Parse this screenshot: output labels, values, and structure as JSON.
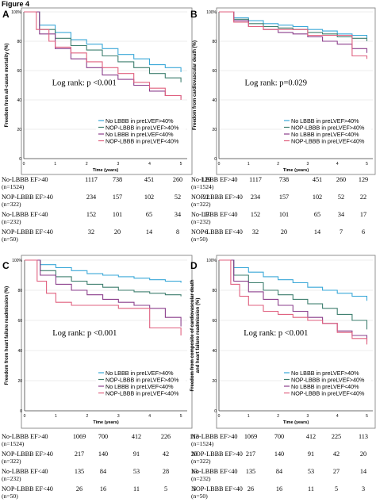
{
  "figure_title": "Figure 4",
  "colors": {
    "s1": "#3aa8d8",
    "s2": "#3f7f6f",
    "s3": "#8b3f8c",
    "s4": "#e0607f"
  },
  "chart_data": [
    {
      "type": "line",
      "panel_label": "A",
      "xlabel": "Time (years)",
      "ylabel": "Freedom from all-cause mortality (%)",
      "annotation": "Log rank:  p <0.001",
      "xlim": [
        0,
        5.2
      ],
      "ylim": [
        0,
        100
      ],
      "x_ticks": [
        "0",
        "1",
        "2",
        "3",
        "4",
        "5"
      ],
      "y_ticks": [
        "0",
        "20",
        "40",
        "60",
        "80",
        "100%"
      ],
      "legend_position": "lower-right",
      "series": [
        {
          "name": "No LBBB in preLVEF>40%",
          "x": [
            0,
            0.5,
            1,
            1.5,
            2,
            2.5,
            3,
            3.5,
            4,
            4.5,
            5
          ],
          "y": [
            100,
            91,
            86,
            81,
            78,
            75,
            71,
            68,
            64,
            62,
            59
          ]
        },
        {
          "name": "NOP-LBBB in preLVEF>40%",
          "x": [
            0,
            0.5,
            1,
            1.5,
            2,
            2.5,
            3,
            3.5,
            4,
            4.5,
            5
          ],
          "y": [
            100,
            88,
            82,
            77,
            74,
            70,
            66,
            62,
            58,
            55,
            52
          ]
        },
        {
          "name": "No LBBB in preLVEF<40%",
          "x": [
            0,
            0.5,
            1,
            1.5,
            2,
            2.5,
            3,
            3.5,
            4,
            4.5,
            5
          ],
          "y": [
            100,
            85,
            75,
            68,
            62,
            57,
            54,
            50,
            46,
            43,
            41
          ]
        },
        {
          "name": "NOP-LBBB in preLVEF<40%",
          "x": [
            0,
            0.4,
            0.8,
            1,
            1.5,
            2,
            2.5,
            3,
            3.5,
            4,
            4.5,
            5
          ],
          "y": [
            100,
            88,
            80,
            76,
            72,
            66,
            62,
            58,
            52,
            48,
            43,
            40
          ]
        }
      ],
      "risk_table": [
        {
          "label": "No-LBBB EF>40",
          "n": "(n=1524)",
          "values": [
            "1117",
            "738",
            "451",
            "260",
            "129"
          ]
        },
        {
          "label": "NOP-LBBB EF>40",
          "n": "(n=322)",
          "values": [
            "234",
            "157",
            "102",
            "52",
            "22"
          ]
        },
        {
          "label": "No-LBBB EF<40",
          "n": "(n=232)",
          "values": [
            "152",
            "101",
            "65",
            "34",
            "17"
          ]
        },
        {
          "label": "NOP-LBBB EF<40",
          "n": "(n=50)",
          "values": [
            "32",
            "20",
            "14",
            "8",
            "6"
          ]
        }
      ]
    },
    {
      "type": "line",
      "panel_label": "B",
      "xlabel": "Time (years)",
      "ylabel": "Freedom from cardiovascular death (%)",
      "annotation": "Log rank:  p=0.029",
      "xlim": [
        0,
        5.2
      ],
      "ylim": [
        0,
        100
      ],
      "x_ticks": [
        "0",
        "1",
        "2",
        "3",
        "4",
        "5"
      ],
      "y_ticks": [
        "0",
        "20",
        "40",
        "60",
        "80",
        "100%"
      ],
      "legend_position": "lower-right",
      "series": [
        {
          "name": "No LBBB in preLVEF>40%",
          "x": [
            0,
            0.5,
            1,
            1.5,
            2,
            2.5,
            3,
            3.5,
            4,
            4.5,
            5
          ],
          "y": [
            100,
            96,
            94,
            92,
            91,
            90,
            88,
            87,
            85,
            84,
            82
          ]
        },
        {
          "name": "NOP-LBBB in preLVEF>40%",
          "x": [
            0,
            0.5,
            1,
            1.5,
            2,
            2.5,
            3,
            3.5,
            4,
            4.5,
            5
          ],
          "y": [
            100,
            95,
            92,
            90,
            89,
            88,
            86,
            85,
            83,
            82,
            80
          ]
        },
        {
          "name": "No LBBB in preLVEF<40%",
          "x": [
            0,
            0.5,
            1,
            1.5,
            2,
            2.5,
            3,
            3.5,
            4,
            4.5,
            5
          ],
          "y": [
            100,
            94,
            90,
            88,
            86,
            85,
            83,
            80,
            78,
            75,
            72
          ]
        },
        {
          "name": "NOP-LBBB in preLVEF<40%",
          "x": [
            0,
            0.5,
            1,
            1.5,
            2,
            3,
            4,
            4.5,
            5
          ],
          "y": [
            100,
            93,
            90,
            88,
            88,
            84,
            84,
            70,
            68
          ]
        }
      ],
      "risk_table": [
        {
          "label": "No-LBBB EF>40",
          "n": "(n=1524)",
          "values": [
            "1117",
            "738",
            "451",
            "260",
            "129"
          ]
        },
        {
          "label": "NOP-LBBB EF>40",
          "n": "(n=322)",
          "values": [
            "234",
            "157",
            "102",
            "52",
            "22"
          ]
        },
        {
          "label": "No-LBBB EF<40",
          "n": "(n=232)",
          "values": [
            "152",
            "101",
            "65",
            "34",
            "17"
          ]
        },
        {
          "label": "NOP-LBBB EF<40",
          "n": "(n=50)",
          "values": [
            "32",
            "20",
            "14",
            "7",
            "6"
          ]
        }
      ]
    },
    {
      "type": "line",
      "panel_label": "C",
      "xlabel": "Time (years)",
      "ylabel": "Freedom from heart failure readmission (%)",
      "annotation": "Log rank:  p <0.001",
      "xlim": [
        0,
        5.2
      ],
      "ylim": [
        0,
        100
      ],
      "x_ticks": [
        "0",
        "1",
        "2",
        "3",
        "4",
        "5"
      ],
      "y_ticks": [
        "0",
        "20",
        "40",
        "60",
        "80",
        "100%"
      ],
      "legend_position": "lower-right",
      "series": [
        {
          "name": "No LBBB in preLVEF>40%",
          "x": [
            0,
            0.5,
            1,
            1.5,
            2,
            2.5,
            3,
            3.5,
            4,
            4.5,
            5
          ],
          "y": [
            100,
            97,
            95,
            93,
            91,
            90,
            89,
            88,
            87,
            86,
            85
          ]
        },
        {
          "name": "NOP-LBBB in preLVEF>40%",
          "x": [
            0,
            0.5,
            1,
            1.5,
            2,
            2.5,
            3,
            3.5,
            4,
            4.5,
            5
          ],
          "y": [
            100,
            93,
            89,
            86,
            84,
            82,
            80,
            79,
            78,
            77,
            76
          ]
        },
        {
          "name": "No LBBB in preLVEF<40%",
          "x": [
            0,
            0.5,
            1,
            1.5,
            2,
            2.5,
            3,
            3.5,
            4,
            4.5,
            5
          ],
          "y": [
            100,
            90,
            84,
            80,
            77,
            74,
            72,
            70,
            68,
            62,
            56
          ]
        },
        {
          "name": "NOP-LBBB in preLVEF<40%",
          "x": [
            0,
            0.4,
            0.7,
            1,
            1.5,
            2,
            3,
            3.5,
            4,
            4.5,
            5
          ],
          "y": [
            100,
            86,
            78,
            72,
            70,
            70,
            68,
            68,
            55,
            55,
            50
          ]
        }
      ],
      "risk_table": [
        {
          "label": "No-LBBB EF>40",
          "n": "(n=1524)",
          "values": [
            "1069",
            "700",
            "412",
            "226",
            "113"
          ]
        },
        {
          "label": "NOP-LBBB EF>40",
          "n": "(n=322)",
          "values": [
            "217",
            "140",
            "91",
            "42",
            "20"
          ]
        },
        {
          "label": "No-LBBB EF<40",
          "n": "(n=232)",
          "values": [
            "135",
            "84",
            "53",
            "28",
            "13"
          ]
        },
        {
          "label": "NOP-LBBB EF<40",
          "n": "(n=50)",
          "values": [
            "26",
            "16",
            "11",
            "5",
            "3"
          ]
        }
      ]
    },
    {
      "type": "line",
      "panel_label": "D",
      "xlabel": "Time (years)",
      "ylabel": "Freedom from composite of cardiovascular death and heart failure readmission (%)",
      "annotation": "Log rank:  p <0.001",
      "xlim": [
        0,
        5.2
      ],
      "ylim": [
        0,
        100
      ],
      "x_ticks": [
        "0",
        "1",
        "2",
        "3",
        "4",
        "5"
      ],
      "y_ticks": [
        "0",
        "20",
        "40",
        "60",
        "80",
        "100%"
      ],
      "legend_position": "lower-right",
      "series": [
        {
          "name": "No LBBB in preLVEF>40%",
          "x": [
            0,
            0.5,
            1,
            1.5,
            2,
            2.5,
            3,
            3.5,
            4,
            4.5,
            5
          ],
          "y": [
            100,
            95,
            92,
            89,
            87,
            85,
            82,
            80,
            78,
            76,
            73
          ]
        },
        {
          "name": "NOP-LBBB in preLVEF>40%",
          "x": [
            0,
            0.5,
            1,
            1.5,
            2,
            2.5,
            3,
            3.5,
            4,
            4.5,
            5
          ],
          "y": [
            100,
            90,
            85,
            80,
            77,
            74,
            71,
            68,
            64,
            60,
            54
          ]
        },
        {
          "name": "No LBBB in preLVEF<40%",
          "x": [
            0,
            0.5,
            1,
            1.5,
            2,
            2.5,
            3,
            3.5,
            4,
            4.5,
            5
          ],
          "y": [
            100,
            86,
            79,
            74,
            70,
            66,
            62,
            58,
            53,
            50,
            46
          ]
        },
        {
          "name": "NOP-LBBB in preLVEF<40%",
          "x": [
            0,
            0.4,
            0.7,
            1,
            1.5,
            2,
            2.5,
            3,
            3.5,
            4,
            4.5,
            5
          ],
          "y": [
            100,
            84,
            76,
            70,
            66,
            64,
            62,
            60,
            58,
            52,
            48,
            44
          ]
        }
      ],
      "risk_table": [
        {
          "label": "No-LBBB EF>40",
          "n": "(n=1524)",
          "values": [
            "1069",
            "700",
            "412",
            "225",
            "113"
          ]
        },
        {
          "label": "NOP-LBBB EF>40",
          "n": "(n=322)",
          "values": [
            "217",
            "140",
            "91",
            "42",
            "20"
          ]
        },
        {
          "label": "No-LBBB EF<40",
          "n": "(n=232)",
          "values": [
            "135",
            "84",
            "53",
            "27",
            "14"
          ]
        },
        {
          "label": "NOP-LBBB EF<40",
          "n": "(n=50)",
          "values": [
            "26",
            "16",
            "11",
            "5",
            "3"
          ]
        }
      ]
    }
  ]
}
